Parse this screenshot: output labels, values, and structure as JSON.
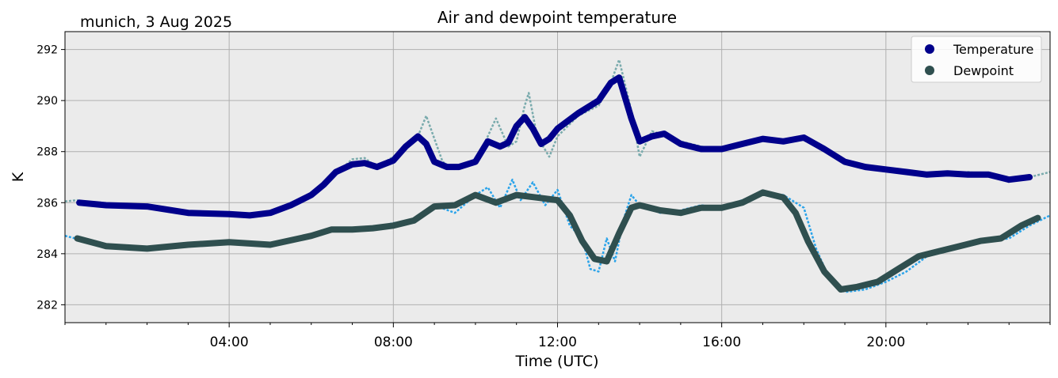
{
  "chart_data": {
    "type": "line",
    "title": "Air and dewpoint temperature",
    "subtitle": "munich, 3 Aug 2025",
    "xlabel": "Time (UTC)",
    "ylabel": "K",
    "xlim": [
      0,
      24
    ],
    "ylim": [
      281.3,
      292.7
    ],
    "grid": true,
    "legend_position": "top-right",
    "x_ticks": [
      {
        "value": 4,
        "label": "04:00"
      },
      {
        "value": 8,
        "label": "08:00"
      },
      {
        "value": 12,
        "label": "12:00"
      },
      {
        "value": 16,
        "label": "16:00"
      },
      {
        "value": 20,
        "label": "20:00"
      }
    ],
    "y_ticks": [
      {
        "value": 282,
        "label": "282"
      },
      {
        "value": 284,
        "label": "284"
      },
      {
        "value": 286,
        "label": "286"
      },
      {
        "value": 288,
        "label": "288"
      },
      {
        "value": 290,
        "label": "290"
      },
      {
        "value": 292,
        "label": "292"
      }
    ],
    "series": [
      {
        "name": "Temperature (raw)",
        "role": "raw",
        "color": "#7aabad",
        "x": [
          0,
          0.3,
          0.5,
          1,
          2,
          3,
          4,
          5,
          6,
          6.5,
          7,
          7.3,
          7.6,
          8,
          8.3,
          8.6,
          8.8,
          9.2,
          9.5,
          10,
          10.3,
          10.5,
          10.8,
          11,
          11.2,
          11.3,
          11.5,
          11.8,
          12,
          12.5,
          13,
          13.3,
          13.5,
          13.8,
          14,
          14.3,
          14.5,
          15,
          15.5,
          16,
          16.5,
          17,
          17.5,
          18,
          18.5,
          19,
          19.5,
          20,
          20.5,
          21,
          21.5,
          22,
          22.5,
          23,
          23.5,
          24
        ],
        "y": [
          286.05,
          286.1,
          286.0,
          285.9,
          285.85,
          285.6,
          285.55,
          285.6,
          286.3,
          287.0,
          287.7,
          287.75,
          287.4,
          287.8,
          288.2,
          288.6,
          289.4,
          287.6,
          287.3,
          287.6,
          288.6,
          289.3,
          288.2,
          288.4,
          289.8,
          290.3,
          288.6,
          287.8,
          288.6,
          289.4,
          289.8,
          290.7,
          291.6,
          289.6,
          287.8,
          288.8,
          288.7,
          288.4,
          288.2,
          288.1,
          288.3,
          288.45,
          288.35,
          288.6,
          288.2,
          287.6,
          287.4,
          287.3,
          287.2,
          287.15,
          287.1,
          287.2,
          287.1,
          286.9,
          287.0,
          287.2
        ]
      },
      {
        "name": "Dewpoint (raw)",
        "role": "raw",
        "color": "#29a3ea",
        "x": [
          0,
          0.5,
          1,
          2,
          3,
          4,
          5,
          6,
          6.5,
          7,
          7.5,
          8,
          8.5,
          9,
          9.5,
          10,
          10.3,
          10.6,
          10.9,
          11.1,
          11.4,
          11.7,
          12,
          12.3,
          12.6,
          12.8,
          13,
          13.2,
          13.4,
          13.6,
          13.8,
          14,
          14.5,
          15,
          15.5,
          16,
          16.5,
          17,
          17.5,
          18,
          18.3,
          18.6,
          19,
          19.5,
          20,
          20.5,
          21,
          21.5,
          22,
          22.5,
          23,
          23.5,
          24
        ],
        "y": [
          284.7,
          284.5,
          284.3,
          284.25,
          284.35,
          284.45,
          284.4,
          284.7,
          285.0,
          284.9,
          285.0,
          285.2,
          285.3,
          285.9,
          285.6,
          286.3,
          286.6,
          285.8,
          286.9,
          286.1,
          286.8,
          285.9,
          286.5,
          285.1,
          284.6,
          283.4,
          283.3,
          284.6,
          283.7,
          285.3,
          286.3,
          285.9,
          285.6,
          285.7,
          285.9,
          285.8,
          286.1,
          286.4,
          286.3,
          285.8,
          284.2,
          283.1,
          282.5,
          282.6,
          282.9,
          283.3,
          283.9,
          284.1,
          284.3,
          284.5,
          284.6,
          285.1,
          285.5
        ]
      },
      {
        "name": "Temperature",
        "role": "smooth",
        "color": "#00008b",
        "x": [
          0.35,
          1,
          2,
          3,
          4,
          4.5,
          5,
          5.5,
          6,
          6.3,
          6.6,
          7,
          7.3,
          7.6,
          8,
          8.3,
          8.6,
          8.8,
          9,
          9.3,
          9.6,
          10,
          10.3,
          10.6,
          10.8,
          11,
          11.2,
          11.4,
          11.6,
          11.8,
          12,
          12.5,
          13,
          13.3,
          13.5,
          13.8,
          14,
          14.3,
          14.6,
          15,
          15.5,
          16,
          16.5,
          17,
          17.5,
          18,
          18.5,
          19,
          19.5,
          20,
          20.5,
          21,
          21.5,
          22,
          22.5,
          23,
          23.5
        ],
        "y": [
          286.0,
          285.9,
          285.85,
          285.6,
          285.55,
          285.5,
          285.6,
          285.9,
          286.3,
          286.7,
          287.2,
          287.5,
          287.55,
          287.4,
          287.65,
          288.2,
          288.6,
          288.3,
          287.6,
          287.4,
          287.4,
          287.6,
          288.4,
          288.2,
          288.35,
          289.0,
          289.35,
          288.9,
          288.3,
          288.5,
          288.9,
          289.5,
          290.0,
          290.7,
          290.9,
          289.3,
          288.4,
          288.6,
          288.7,
          288.3,
          288.1,
          288.1,
          288.3,
          288.5,
          288.4,
          288.55,
          288.1,
          287.6,
          287.4,
          287.3,
          287.2,
          287.1,
          287.15,
          287.1,
          287.1,
          286.9,
          287.0
        ]
      },
      {
        "name": "Dewpoint",
        "role": "smooth",
        "color": "#2f4f4f",
        "x": [
          0.3,
          1,
          2,
          3,
          4,
          5,
          6,
          6.5,
          7,
          7.5,
          8,
          8.5,
          9,
          9.5,
          10,
          10.5,
          11,
          11.5,
          12,
          12.3,
          12.6,
          12.9,
          13.2,
          13.5,
          13.8,
          14,
          14.5,
          15,
          15.5,
          16,
          16.5,
          17,
          17.5,
          17.8,
          18.1,
          18.5,
          18.9,
          19.3,
          19.8,
          20.3,
          20.8,
          21.3,
          21.8,
          22.3,
          22.8,
          23.3,
          23.7
        ],
        "y": [
          284.6,
          284.3,
          284.2,
          284.35,
          284.45,
          284.35,
          284.7,
          284.95,
          284.95,
          285.0,
          285.1,
          285.3,
          285.85,
          285.9,
          286.3,
          286.0,
          286.3,
          286.2,
          286.1,
          285.5,
          284.5,
          283.8,
          283.7,
          284.8,
          285.8,
          285.9,
          285.7,
          285.6,
          285.8,
          285.8,
          286.0,
          286.4,
          286.2,
          285.6,
          284.5,
          283.3,
          282.6,
          282.7,
          282.9,
          283.4,
          283.9,
          284.1,
          284.3,
          284.5,
          284.6,
          285.1,
          285.4
        ]
      }
    ],
    "legend": [
      {
        "label": "Temperature",
        "color": "#00008b"
      },
      {
        "label": "Dewpoint",
        "color": "#2f4f4f"
      }
    ]
  }
}
